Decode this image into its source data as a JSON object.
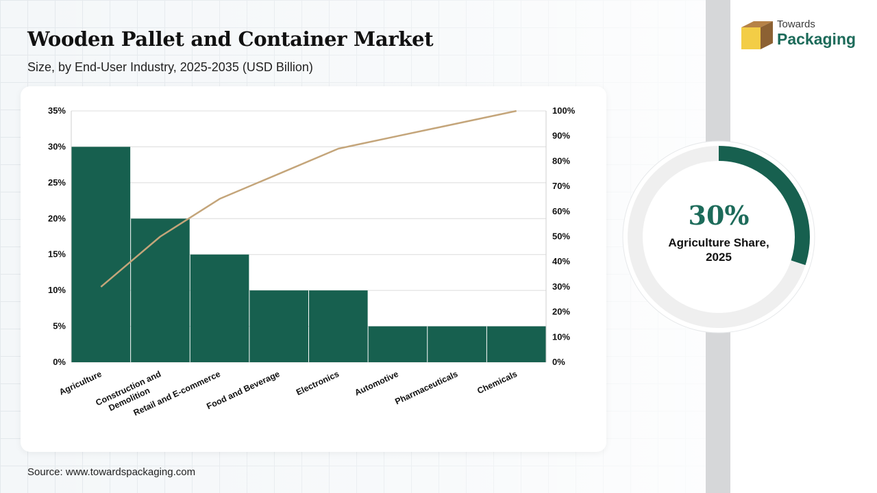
{
  "header": {
    "title": "Wooden Pallet and Container Market",
    "subtitle": "Size, by End-User Industry, 2025-2035 (USD Billion)"
  },
  "brand": {
    "line1": "Towards",
    "line2": "Packaging"
  },
  "highlight": {
    "value": "30%",
    "label": "Agriculture Share, 2025",
    "share": 0.3
  },
  "source": "Source: www.towardspackaging.com",
  "colors": {
    "bar": "#17604f",
    "line": "#c4a57a",
    "accent": "#1d6b5a",
    "donut_track": "#efefef"
  },
  "chart_data": {
    "type": "bar",
    "categories": [
      "Agriculture",
      "Construction and Demolition",
      "Retail and E-commerce",
      "Food and Beverage",
      "Electronics",
      "Automotive",
      "Pharmaceuticals",
      "Chemicals"
    ],
    "series": [
      {
        "type": "bar",
        "axis": "left",
        "values": [
          30,
          20,
          15,
          10,
          10,
          5,
          5,
          5
        ]
      },
      {
        "type": "line",
        "axis": "right",
        "values": [
          30,
          50,
          65,
          75,
          85,
          90,
          95,
          100
        ]
      }
    ],
    "ylim": [
      0,
      35
    ],
    "y2lim": [
      0,
      100
    ],
    "yticks": [
      "0%",
      "5%",
      "10%",
      "15%",
      "20%",
      "25%",
      "30%",
      "35%"
    ],
    "y2ticks": [
      "0%",
      "10%",
      "20%",
      "30%",
      "40%",
      "50%",
      "60%",
      "70%",
      "80%",
      "90%",
      "100%"
    ],
    "grid": true
  }
}
